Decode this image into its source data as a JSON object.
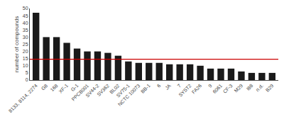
{
  "chart_data": {
    "type": "bar",
    "categories": [
      "8133, 8114, 2274",
      "G8",
      "168",
      "XF-1",
      "G-1",
      "PPCB001",
      "SV44-2",
      "SV362",
      "BL02",
      "SV75-1",
      "NCTC 10073",
      "BB-1",
      "6",
      "JA",
      "7",
      "SYST2",
      "FA26",
      "9",
      "6061",
      "CF-3",
      "M29",
      "I88",
      "n.d.",
      "B29"
    ],
    "values": [
      47,
      30,
      30,
      26,
      22,
      20,
      20,
      19,
      17,
      13,
      12,
      12,
      12,
      11,
      11,
      11,
      10,
      8,
      8,
      8,
      6,
      5,
      5,
      5
    ],
    "color": "#1a1a1a",
    "hline": 14.5,
    "hline_color": "#cc0000",
    "ylabel": "number of compounds",
    "ylim": [
      0,
      50
    ],
    "yticks": [
      0,
      5,
      10,
      15,
      20,
      25,
      30,
      35,
      40,
      45,
      50
    ],
    "grid": false
  }
}
